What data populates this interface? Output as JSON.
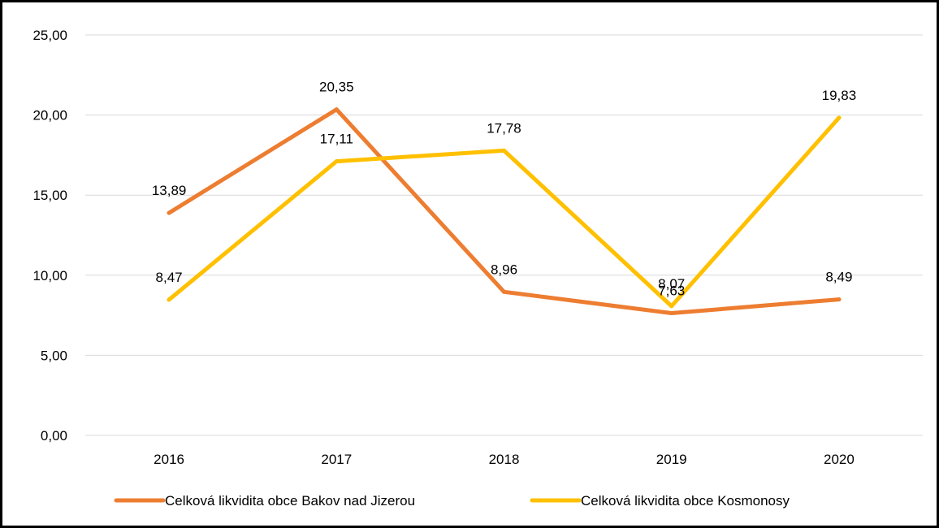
{
  "chart_data": {
    "type": "line",
    "categories": [
      "2016",
      "2017",
      "2018",
      "2019",
      "2020"
    ],
    "y_tick_labels": [
      "0,00",
      "5,00",
      "10,00",
      "15,00",
      "20,00",
      "25,00"
    ],
    "ylim": [
      0,
      25
    ],
    "grid": true,
    "legend_position": "bottom",
    "series": [
      {
        "name": "Celková likvidita obce Bakov nad Jizerou",
        "color": "#ED7D31",
        "values": [
          13.89,
          20.35,
          8.96,
          7.63,
          8.49
        ],
        "labels": [
          "13,89",
          "20,35",
          "8,96",
          "7,63",
          "8,49"
        ]
      },
      {
        "name": "Celková likvidita obce Kosmonosy",
        "color": "#FFC000",
        "values": [
          8.47,
          17.11,
          17.78,
          8.07,
          19.83
        ],
        "labels": [
          "8,47",
          "17,11",
          "17,78",
          "8,07",
          "19,83"
        ]
      }
    ]
  }
}
